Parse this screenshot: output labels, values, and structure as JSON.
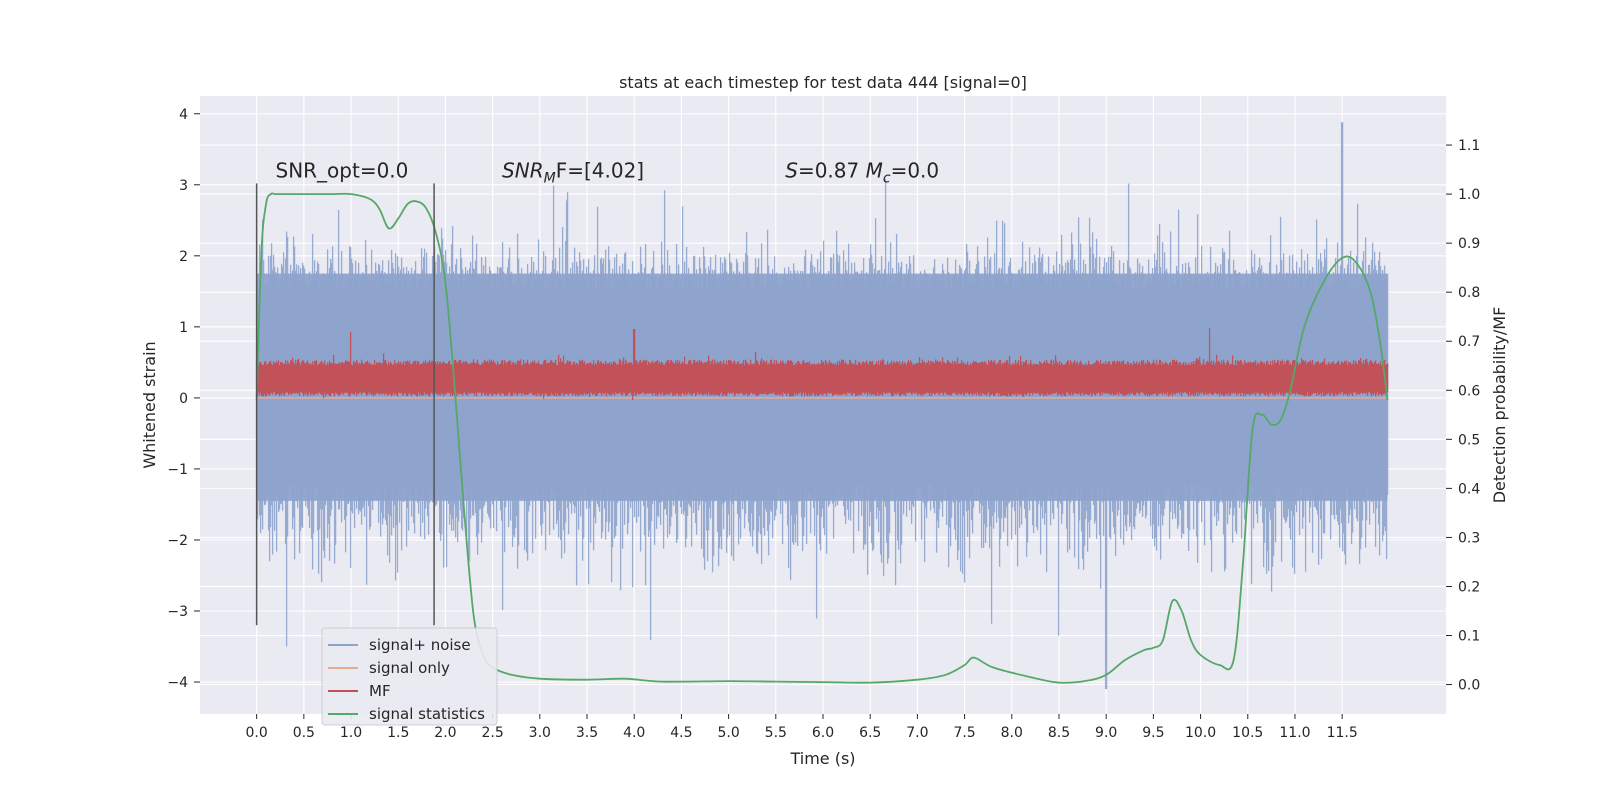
{
  "chart_data": {
    "type": "line",
    "title": "stats at each timestep for test data 444 [signal=0]",
    "xlabel": "Time (s)",
    "ylabel": "Whitened strain",
    "ylabel_right": "Detection probability/MF",
    "xlim": [
      -0.6,
      12.6
    ],
    "ylim": [
      -4.45,
      4.25
    ],
    "ylim_right": [
      -0.06,
      1.2
    ],
    "grid": true,
    "x_ticks": [
      0.0,
      0.5,
      1.0,
      1.5,
      2.0,
      2.5,
      3.0,
      3.5,
      4.0,
      4.5,
      5.0,
      5.5,
      6.0,
      6.5,
      7.0,
      7.5,
      8.0,
      8.5,
      9.0,
      9.5,
      10.0,
      10.5,
      11.0,
      11.5
    ],
    "x_tick_labels": [
      "0.0",
      "0.5",
      "1.0",
      "1.5",
      "2.0",
      "2.5",
      "3.0",
      "3.5",
      "4.0",
      "4.5",
      "5.0",
      "5.5",
      "6.0",
      "6.5",
      "7.0",
      "7.5",
      "8.0",
      "8.5",
      "9.0",
      "9.5",
      "10.0",
      "10.5",
      "11.0",
      "11.5"
    ],
    "y_ticks": [
      -4,
      -3,
      -2,
      -1,
      0,
      1,
      2,
      3,
      4
    ],
    "y_tick_labels": [
      "−4",
      "−3",
      "−2",
      "−1",
      "0",
      "1",
      "2",
      "3",
      "4"
    ],
    "y_ticks_right": [
      0.0,
      0.1,
      0.2,
      0.3,
      0.4,
      0.5,
      0.6,
      0.7,
      0.8,
      0.9,
      1.0,
      1.1
    ],
    "y_tick_labels_right": [
      "0.0",
      "0.1",
      "0.2",
      "0.3",
      "0.4",
      "0.5",
      "0.6",
      "0.7",
      "0.8",
      "0.9",
      "1.0",
      "1.1"
    ],
    "legend": {
      "placement": "lower-left",
      "entries": [
        {
          "label": "signal+ noise",
          "color": "#8ea3cc"
        },
        {
          "label": "signal only",
          "color": "#e9a98e"
        },
        {
          "label": "MF",
          "color": "#c44e52"
        },
        {
          "label": "signal statistics",
          "color": "#55a868"
        }
      ]
    },
    "annotations": [
      {
        "text": "SNR_opt=0.0",
        "x": 0.2,
        "y": 3.1
      },
      {
        "text_parts": [
          "SNR",
          "M",
          "F=[4.02]"
        ],
        "x": 2.6,
        "y": 3.1
      },
      {
        "text_parts": [
          "S",
          "=0.87   ",
          "M",
          "c",
          "=0.0"
        ],
        "x": 5.6,
        "y": 3.1
      }
    ],
    "vertical_markers": [
      {
        "x": 0.0,
        "y_range": [
          -3.2,
          3.02
        ]
      },
      {
        "x": 1.88,
        "y_range": [
          -3.2,
          3.02
        ]
      }
    ],
    "series": [
      {
        "name": "signal+ noise",
        "color": "#8ea3cc",
        "axis": "left",
        "style": "noise-band",
        "x_range": [
          0.0,
          11.98
        ],
        "baseline": -0.3,
        "upper_envelope": 2.1,
        "lower_envelope": -2.3,
        "dense_upper": 1.75,
        "dense_lower": -1.45,
        "peaks": [
          {
            "x": 11.5,
            "y": 3.88
          },
          {
            "x": 9.0,
            "y": -4.1
          },
          {
            "x": 0.32,
            "y": -3.5
          },
          {
            "x": 8.5,
            "y": -3.35
          }
        ]
      },
      {
        "name": "signal only",
        "color": "#e9a98e",
        "axis": "left",
        "x": [
          0.0,
          11.98
        ],
        "y": [
          0.0,
          0.0
        ]
      },
      {
        "name": "MF",
        "color": "#c44e52",
        "axis": "left",
        "style": "noise-band",
        "x_range": [
          0.0,
          11.98
        ],
        "center": 0.28,
        "upper_envelope": 0.62,
        "lower_envelope": 0.0,
        "peaks": [
          {
            "x": 1.0,
            "y": 0.93
          },
          {
            "x": 4.0,
            "y": 0.97
          },
          {
            "x": 10.1,
            "y": 0.98
          }
        ]
      },
      {
        "name": "signal statistics",
        "color": "#55a868",
        "axis": "right",
        "x": [
          0.0,
          0.05,
          0.1,
          0.15,
          0.2,
          0.3,
          0.5,
          0.8,
          1.0,
          1.2,
          1.3,
          1.4,
          1.5,
          1.6,
          1.7,
          1.8,
          1.9,
          2.0,
          2.1,
          2.2,
          2.3,
          2.4,
          2.5,
          2.7,
          3.0,
          3.5,
          3.9,
          4.3,
          5.0,
          5.5,
          6.0,
          6.5,
          7.0,
          7.3,
          7.5,
          7.6,
          7.8,
          8.2,
          8.5,
          8.8,
          9.0,
          9.2,
          9.4,
          9.5,
          9.6,
          9.7,
          9.8,
          9.9,
          10.0,
          10.2,
          10.35,
          10.45,
          10.55,
          10.65,
          10.75,
          10.85,
          10.95,
          11.1,
          11.3,
          11.5,
          11.65,
          11.8,
          11.9,
          11.98
        ],
        "y": [
          0.58,
          0.88,
          0.98,
          1.0,
          1.0,
          1.0,
          1.0,
          1.0,
          1.0,
          0.99,
          0.97,
          0.93,
          0.95,
          0.98,
          0.985,
          0.97,
          0.92,
          0.82,
          0.6,
          0.35,
          0.14,
          0.06,
          0.035,
          0.02,
          0.012,
          0.01,
          0.012,
          0.006,
          0.007,
          0.006,
          0.005,
          0.004,
          0.01,
          0.02,
          0.04,
          0.055,
          0.035,
          0.015,
          0.004,
          0.008,
          0.02,
          0.05,
          0.07,
          0.075,
          0.09,
          0.17,
          0.15,
          0.09,
          0.06,
          0.04,
          0.05,
          0.25,
          0.52,
          0.55,
          0.53,
          0.54,
          0.6,
          0.73,
          0.82,
          0.87,
          0.86,
          0.8,
          0.7,
          0.58
        ]
      }
    ]
  }
}
